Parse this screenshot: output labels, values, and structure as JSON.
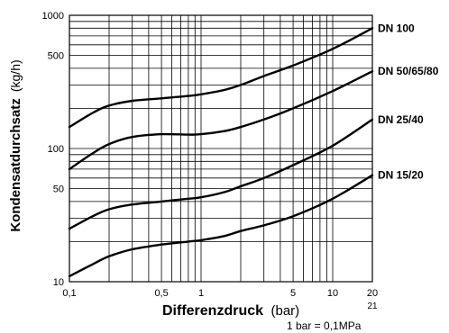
{
  "chart_data": {
    "type": "line",
    "xscale": "log",
    "yscale": "log",
    "xlim": [
      0.1,
      20
    ],
    "ylim": [
      10,
      1000
    ],
    "grid": true,
    "xlabel": {
      "bold": "Differenzdruck",
      "unit": "(bar)"
    },
    "ylabel": {
      "bold": "Kondensatdurchsatz",
      "unit": "(kg/h)"
    },
    "note": "1 bar = 0,1MPa",
    "extra_x_label": "21",
    "x_ticks": [
      {
        "value": 0.1,
        "label": "0,1"
      },
      {
        "value": 0.5,
        "label": "0,5"
      },
      {
        "value": 1,
        "label": "1"
      },
      {
        "value": 5,
        "label": "5"
      },
      {
        "value": 10,
        "label": "10"
      },
      {
        "value": 20,
        "label": "20"
      }
    ],
    "y_ticks": [
      {
        "value": 10,
        "label": "10"
      },
      {
        "value": 50,
        "label": "50"
      },
      {
        "value": 100,
        "label": "100"
      },
      {
        "value": 500,
        "label": "500"
      },
      {
        "value": 1000,
        "label": "1000"
      }
    ],
    "series": [
      {
        "name": "DN 100",
        "x": [
          0.1,
          0.15,
          0.2,
          0.3,
          0.5,
          0.8,
          1,
          1.5,
          2,
          3,
          5,
          10,
          20
        ],
        "y": [
          145,
          185,
          210,
          228,
          238,
          248,
          255,
          275,
          300,
          350,
          420,
          560,
          800
        ]
      },
      {
        "name": "DN 50/65/80",
        "x": [
          0.1,
          0.15,
          0.2,
          0.3,
          0.5,
          0.8,
          1,
          1.5,
          2,
          3,
          5,
          10,
          20
        ],
        "y": [
          70,
          92,
          108,
          122,
          128,
          127,
          128,
          135,
          145,
          165,
          200,
          270,
          380
        ]
      },
      {
        "name": "DN 25/40",
        "x": [
          0.1,
          0.15,
          0.2,
          0.3,
          0.5,
          0.8,
          1,
          1.5,
          2,
          3,
          5,
          10,
          20
        ],
        "y": [
          25,
          31,
          35,
          38,
          40,
          42,
          43,
          47,
          52,
          60,
          75,
          105,
          165
        ]
      },
      {
        "name": "DN 15/20",
        "x": [
          0.1,
          0.15,
          0.2,
          0.3,
          0.5,
          0.8,
          1,
          1.5,
          2,
          3,
          5,
          10,
          20
        ],
        "y": [
          11,
          13.5,
          15.5,
          17.5,
          19,
          20,
          20.5,
          22,
          24,
          26.5,
          31,
          42,
          63
        ]
      }
    ]
  }
}
